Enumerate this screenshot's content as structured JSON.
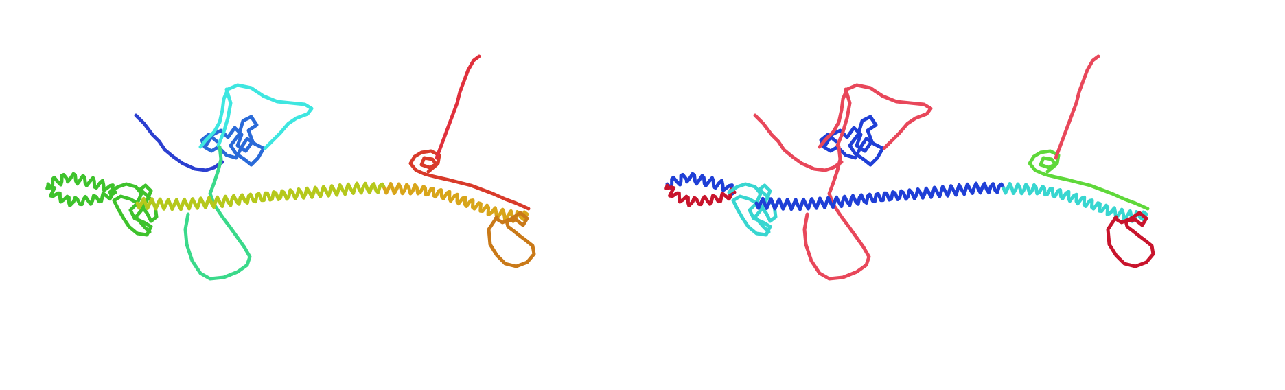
{
  "views": [
    {
      "id": "rainbow",
      "coloring": "sequence-rainbow",
      "colors": {
        "nterm": "#2b3fd0",
        "core": "#2a6ad8",
        "loop": "#3ee6e0",
        "hinge": "#3ad98a",
        "coil_left": "#3ec22c",
        "helix": "#b5c81c",
        "helix_end": "#d8a51a",
        "cterm_loop": "#c97918",
        "cterm": "#d83a2a",
        "tail": "#e0303c"
      }
    },
    {
      "id": "confidence",
      "coloring": "per-residue-confidence",
      "colors": {
        "high": "#1f3fd6",
        "medium": "#38d6d0",
        "mid": "#5fd83a",
        "low_mid": "#e6c21a",
        "low": "#e8475a",
        "very_low": "#c8142c"
      }
    }
  ]
}
